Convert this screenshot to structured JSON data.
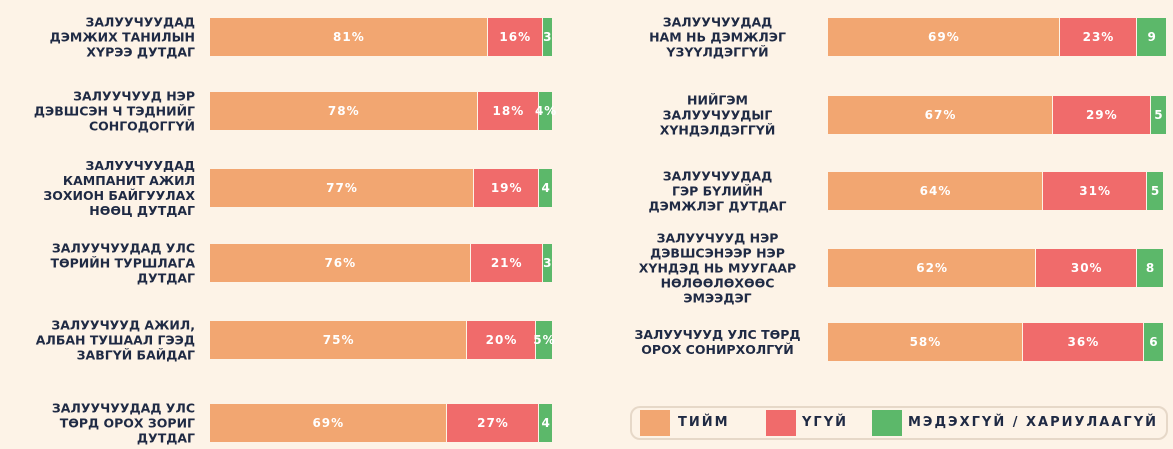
{
  "chart_data": [
    {
      "type": "bar",
      "orientation": "horizontal",
      "stacked": true,
      "categories": [
        "ЗАЛУУЧУУДАД\nДЭМЖИХ ТАНИЛЫН\nХҮРЭЭ ДУТДАГ",
        "ЗАЛУУЧУУД НЭР\nДЭВШСЭН Ч ТЭДНИЙГ\nСОНГОДОГГҮЙ",
        "ЗАЛУУЧУУДАД\nКАМПАНИТ АЖИЛ\nЗОХИОН БАЙГУУЛАХ\nНӨӨЦ ДУТДАГ",
        "ЗАЛУУЧУУДАД УЛС\nТӨРИЙН ТУРШЛАГА\nДУТДАГ",
        "ЗАЛУУЧУУД АЖИЛ,\nАЛБАН ТУШААЛ ГЭЭД\nЗАВГҮЙ БАЙДАГ",
        "ЗАЛУУЧУУДАД УЛС\nТӨРД ОРОХ ЗОРИГ\nДУТДАГ"
      ],
      "series": [
        {
          "name": "ТИЙМ",
          "color": "#f2a671",
          "values": [
            81,
            78,
            77,
            76,
            75,
            69
          ],
          "value_labels": [
            "81%",
            "78%",
            "77%",
            "76%",
            "75%",
            "69%"
          ]
        },
        {
          "name": "ҮГҮЙ",
          "color": "#f06b6b",
          "values": [
            16,
            18,
            19,
            21,
            20,
            27
          ],
          "value_labels": [
            "16%",
            "18%",
            "19%",
            "21%",
            "20%",
            "27%"
          ]
        },
        {
          "name": "МЭДЭХГҮЙ / ХАРИУЛААГҮЙ",
          "color": "#5cb86a",
          "values": [
            3,
            4,
            4,
            3,
            5,
            4
          ],
          "value_labels": [
            "3",
            "4%",
            "4",
            "3",
            "5%",
            "4"
          ]
        }
      ]
    },
    {
      "type": "bar",
      "orientation": "horizontal",
      "stacked": true,
      "categories": [
        "ЗАЛУУЧУУДАД\nНАМ НЬ ДЭМЖЛЭГ\nҮЗҮҮЛДЭГГҮЙ",
        "НИЙГЭМ\nЗАЛУУЧУУДЫГ\nХҮНДЭЛДЭГГҮЙ",
        "ЗАЛУУЧУУДАД\nГЭР БҮЛИЙН\nДЭМЖЛЭГ ДУТДАГ",
        "ЗАЛУУЧУУД НЭР\nДЭВШСЭНЭЭР НЭР\nХҮНДЭД НЬ МУУГААР\nНӨЛӨӨЛӨХӨӨС\nЭМЭЭДЭГ",
        "ЗАЛУУЧУУД УЛС ТӨРД\nОРОХ СОНИРХОЛГҮЙ"
      ],
      "series": [
        {
          "color": "#f2a671",
          "values": [
            69,
            67,
            64,
            62,
            58
          ],
          "value_labels": [
            "69%",
            "67%",
            "64%",
            "62%",
            "58%"
          ]
        },
        {
          "color": "#f06b6b",
          "values": [
            23,
            29,
            31,
            30,
            36
          ],
          "value_labels": [
            "23%",
            "29%",
            "31%",
            "30%",
            "36%"
          ]
        },
        {
          "color": "#5cb86a",
          "values": [
            9,
            5,
            5,
            8,
            6
          ],
          "value_labels": [
            "9",
            "5",
            "5",
            "8",
            "6"
          ]
        }
      ]
    }
  ]
}
